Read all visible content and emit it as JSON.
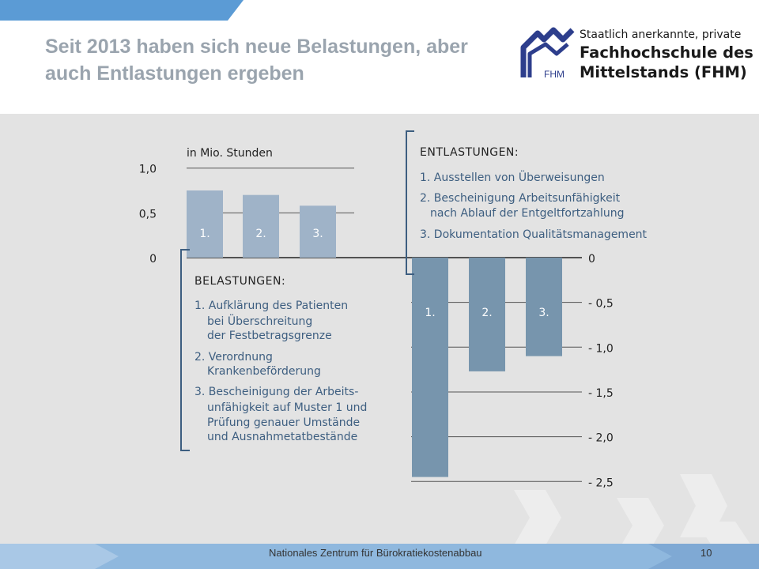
{
  "slide": {
    "title": "Seit 2013 haben sich neue Belastungen, aber auch Entlastungen ergeben",
    "logo": {
      "line1": "Staatlich anerkannte, private",
      "line2": "Fachhochschule des",
      "line3": "Mittelstands (FHM)",
      "mark_text": "FHM"
    },
    "footer": "Nationales Zentrum für Bürokratiekostenabbau",
    "page_number": "10"
  },
  "colors": {
    "accent_blue": "#5b9bd5",
    "belastungen_bar": "#9fb3c8",
    "entlastungen_bar": "#7795ad",
    "panel_bg": "#e3e3e3",
    "text_blue": "#3d5e80",
    "title_grey": "#9aa4ae",
    "logo_blue": "#2d3e8c"
  },
  "chart_data": [
    {
      "type": "bar",
      "unit_label": "in Mio. Stunden",
      "categories": [
        "1.",
        "2.",
        "3."
      ],
      "values": [
        0.75,
        0.7,
        0.58
      ],
      "ylim": [
        0,
        1.0
      ],
      "yticks": [
        "1,0",
        "0,5",
        "0"
      ],
      "ytick_values": [
        1.0,
        0.5,
        0
      ],
      "grid": true,
      "legend_title": "BELASTUNGEN:",
      "legend_lines": [
        "1. Aufklärung des Patienten",
        "bei Überschreitung",
        "der Festbetragsgrenze",
        "2. Verordnung",
        "Krankenbeförderung",
        "3. Bescheinigung der Arbeits-",
        "unfähigkeit auf Muster 1 und",
        "Prüfung genauer Umstände",
        "und Ausnahmetatbestände"
      ]
    },
    {
      "type": "bar",
      "categories": [
        "1.",
        "2.",
        "3."
      ],
      "values": [
        -2.45,
        -1.27,
        -1.1
      ],
      "ylim": [
        -2.5,
        0
      ],
      "yticks": [
        "0",
        "- 0,5",
        "- 1,0",
        "- 1,5",
        "- 2,0",
        "- 2,5"
      ],
      "ytick_values": [
        0,
        -0.5,
        -1.0,
        -1.5,
        -2.0,
        -2.5
      ],
      "grid": true,
      "legend_title": "ENTLASTUNGEN:",
      "legend_lines": [
        "1. Ausstellen von Überweisungen",
        "2. Bescheinigung Arbeitsunfähigkeit",
        "nach Ablauf der Entgeltfortzahlung",
        "3. Dokumentation Qualitätsmanagement"
      ]
    }
  ]
}
